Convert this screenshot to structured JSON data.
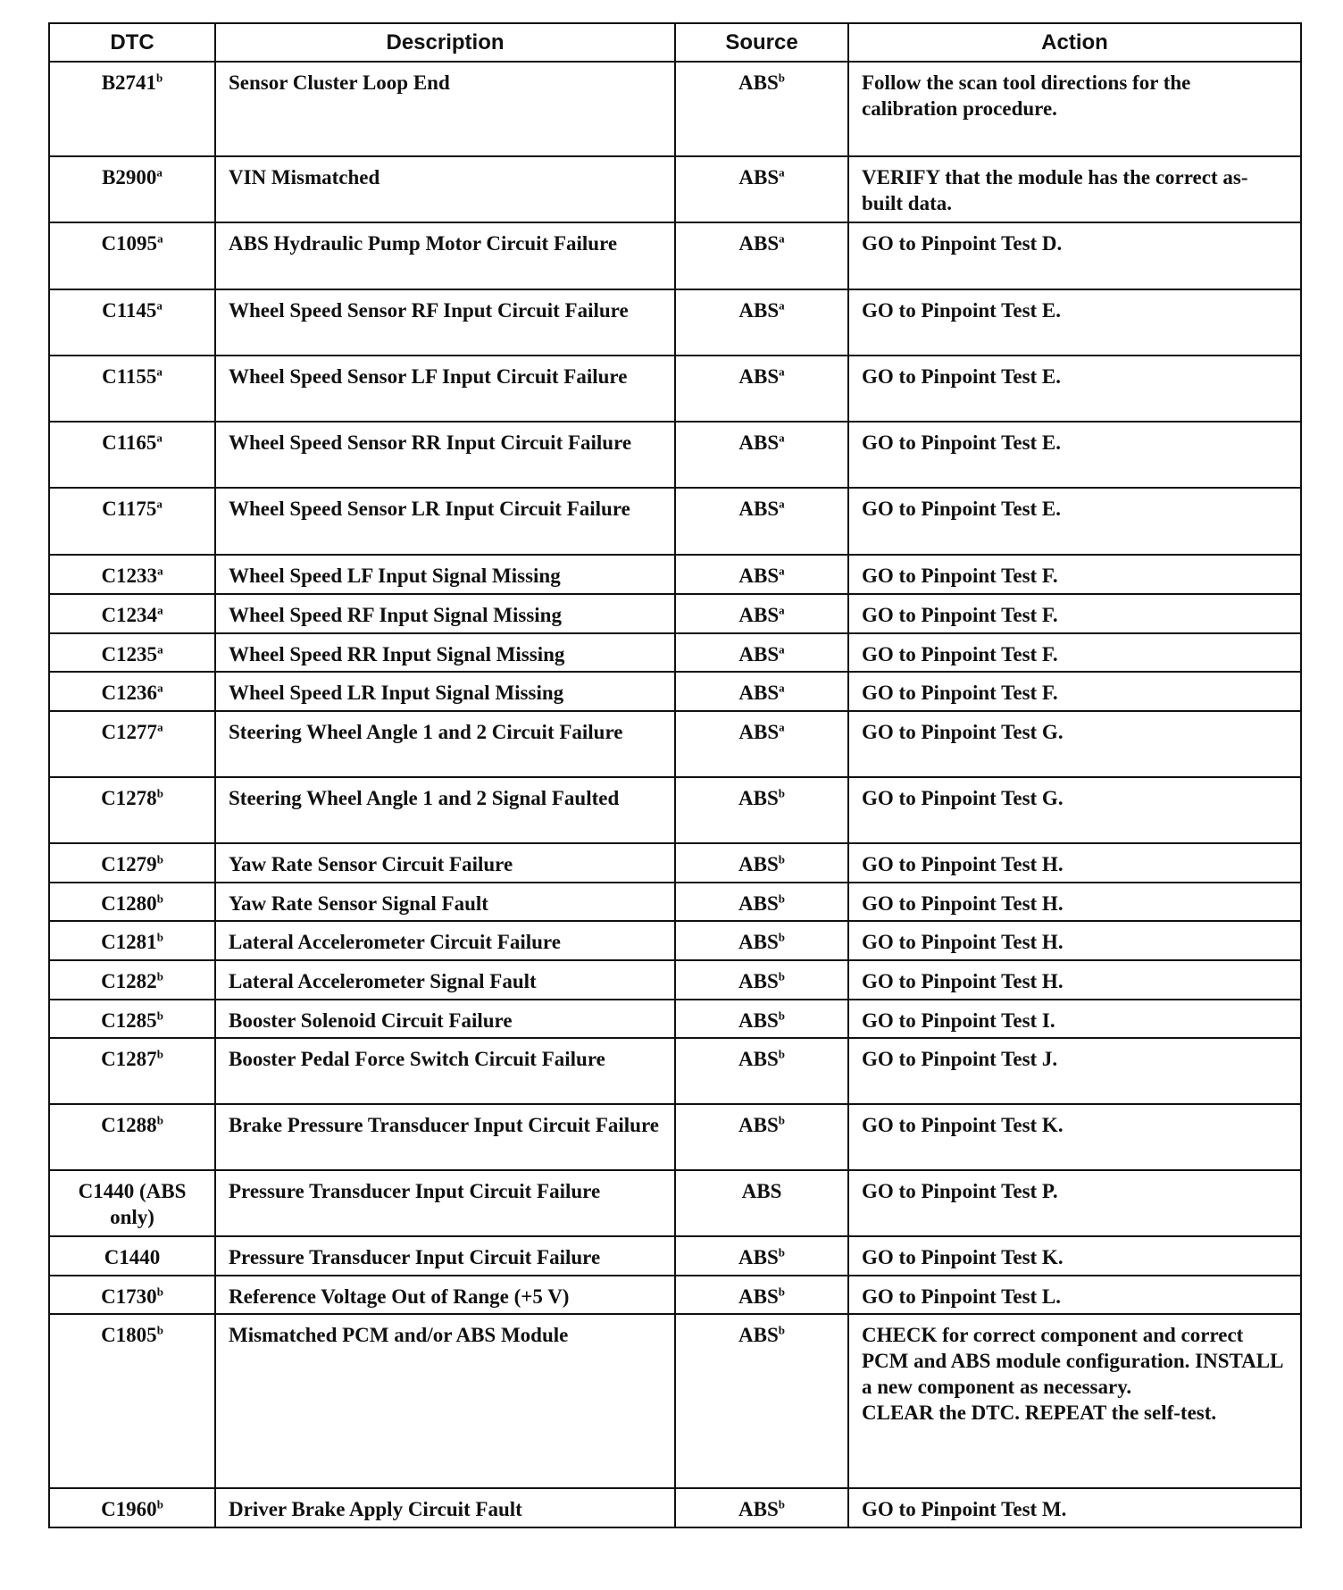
{
  "headers": {
    "dtc": "DTC",
    "description": "Description",
    "source": "Source",
    "action": "Action"
  },
  "rows": [
    {
      "dtc": "B2741",
      "dtc_note": "b",
      "description": "Sensor Cluster Loop End",
      "source": "ABS",
      "source_note": "b",
      "action": "Follow the scan tool directions for the calibration procedure."
    },
    {
      "dtc": "B2900",
      "dtc_note": "a",
      "description": "VIN Mismatched",
      "source": "ABS",
      "source_note": "a",
      "action": "VERIFY that the module has the correct as-built data."
    },
    {
      "dtc": "C1095",
      "dtc_note": "a",
      "description": "ABS Hydraulic Pump Motor Circuit Failure",
      "source": "ABS",
      "source_note": "a",
      "action": "GO to Pinpoint Test D."
    },
    {
      "dtc": "C1145",
      "dtc_note": "a",
      "description": "Wheel Speed Sensor RF Input Circuit Failure",
      "source": "ABS",
      "source_note": "a",
      "action": "GO to Pinpoint Test E."
    },
    {
      "dtc": "C1155",
      "dtc_note": "a",
      "description": "Wheel Speed Sensor LF Input Circuit Failure",
      "source": "ABS",
      "source_note": "a",
      "action": "GO to Pinpoint Test E."
    },
    {
      "dtc": "C1165",
      "dtc_note": "a",
      "description": "Wheel Speed Sensor RR Input Circuit Failure",
      "source": "ABS",
      "source_note": "a",
      "action": "GO to Pinpoint Test E."
    },
    {
      "dtc": "C1175",
      "dtc_note": "a",
      "description": "Wheel Speed Sensor LR Input Circuit Failure",
      "source": "ABS",
      "source_note": "a",
      "action": "GO to Pinpoint Test E."
    },
    {
      "dtc": "C1233",
      "dtc_note": "a",
      "description": "Wheel Speed LF Input Signal Missing",
      "source": "ABS",
      "source_note": "a",
      "action": "GO to Pinpoint Test F."
    },
    {
      "dtc": "C1234",
      "dtc_note": "a",
      "description": "Wheel Speed RF Input Signal Missing",
      "source": "ABS",
      "source_note": "a",
      "action": "GO to Pinpoint Test F."
    },
    {
      "dtc": "C1235",
      "dtc_note": "a",
      "description": "Wheel Speed RR Input Signal Missing",
      "source": "ABS",
      "source_note": "a",
      "action": "GO to Pinpoint Test F."
    },
    {
      "dtc": "C1236",
      "dtc_note": "a",
      "description": "Wheel Speed LR Input Signal Missing",
      "source": "ABS",
      "source_note": "a",
      "action": "GO to Pinpoint Test F."
    },
    {
      "dtc": "C1277",
      "dtc_note": "a",
      "description": "Steering Wheel Angle 1 and 2 Circuit Failure",
      "source": "ABS",
      "source_note": "a",
      "action": "GO to Pinpoint Test G."
    },
    {
      "dtc": "C1278",
      "dtc_note": "b",
      "description": "Steering Wheel Angle 1 and 2 Signal Faulted",
      "source": "ABS",
      "source_note": "b",
      "action": "GO to Pinpoint Test G."
    },
    {
      "dtc": "C1279",
      "dtc_note": "b",
      "description": "Yaw Rate Sensor Circuit Failure",
      "source": "ABS",
      "source_note": "b",
      "action": "GO to Pinpoint Test H."
    },
    {
      "dtc": "C1280",
      "dtc_note": "b",
      "description": "Yaw Rate Sensor Signal Fault",
      "source": "ABS",
      "source_note": "b",
      "action": "GO to Pinpoint Test H."
    },
    {
      "dtc": "C1281",
      "dtc_note": "b",
      "description": "Lateral Accelerometer Circuit Failure",
      "source": "ABS",
      "source_note": "b",
      "action": "GO to Pinpoint Test H."
    },
    {
      "dtc": "C1282",
      "dtc_note": "b",
      "description": "Lateral Accelerometer Signal Fault",
      "source": "ABS",
      "source_note": "b",
      "action": "GO to Pinpoint Test H."
    },
    {
      "dtc": "C1285",
      "dtc_note": "b",
      "description": "Booster Solenoid Circuit Failure",
      "source": "ABS",
      "source_note": "b",
      "action": "GO to Pinpoint Test I."
    },
    {
      "dtc": "C1287",
      "dtc_note": "b",
      "description": "Booster Pedal Force Switch Circuit Failure",
      "source": "ABS",
      "source_note": "b",
      "action": "GO to Pinpoint Test J."
    },
    {
      "dtc": "C1288",
      "dtc_note": "b",
      "description": "Brake Pressure Transducer Input Circuit Failure",
      "source": "ABS",
      "source_note": "b",
      "action": "GO to Pinpoint Test K."
    },
    {
      "dtc": "C1440 (ABS only)",
      "dtc_note": "",
      "description": "Pressure Transducer Input Circuit Failure",
      "source": "ABS",
      "source_note": "",
      "action": "GO to Pinpoint Test P."
    },
    {
      "dtc": "C1440",
      "dtc_note": "",
      "description": "Pressure Transducer Input Circuit Failure",
      "source": "ABS",
      "source_note": "b",
      "action": "GO to Pinpoint Test K."
    },
    {
      "dtc": "C1730",
      "dtc_note": "b",
      "description": "Reference Voltage Out of Range (+5 V)",
      "source": "ABS",
      "source_note": "b",
      "action": "GO to Pinpoint Test L."
    },
    {
      "dtc": "C1805",
      "dtc_note": "b",
      "description": "Mismatched PCM and/or ABS Module",
      "source": "ABS",
      "source_note": "b",
      "action": "CHECK for correct component and correct PCM and ABS module configuration. INSTALL a new component as necessary.\nCLEAR the DTC. REPEAT the self-test."
    },
    {
      "dtc": "C1960",
      "dtc_note": "b",
      "description": "Driver Brake Apply Circuit Fault",
      "source": "ABS",
      "source_note": "b",
      "action": "GO to Pinpoint Test M."
    }
  ]
}
